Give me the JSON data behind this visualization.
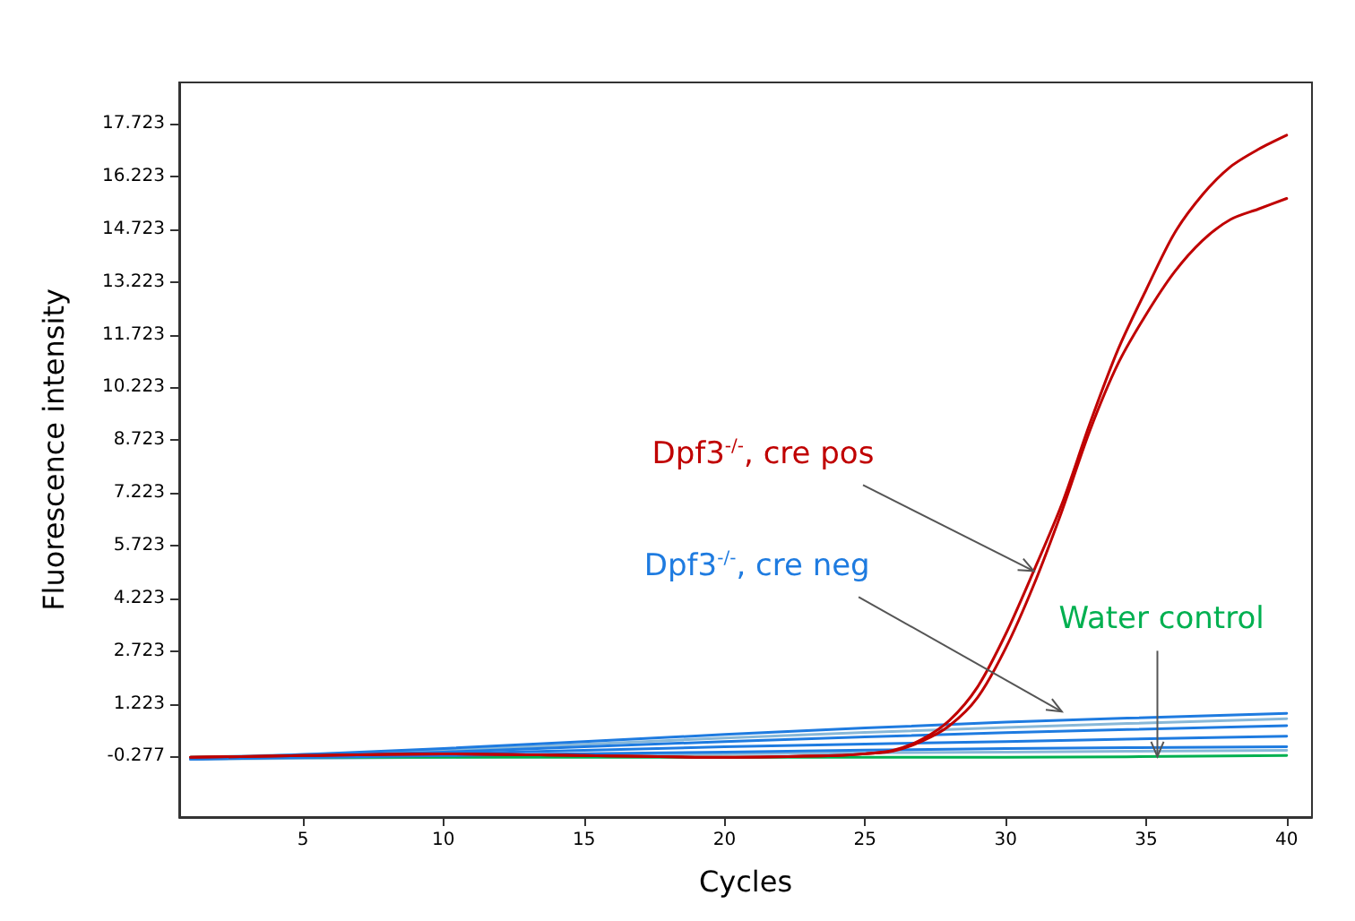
{
  "chart_data": {
    "type": "line",
    "xlabel": "Cycles",
    "ylabel": "Fluorescence intensity",
    "xlim": [
      0.6,
      40.9
    ],
    "ylim": [
      -2.0,
      18.9
    ],
    "xticks": [
      5,
      10,
      15,
      20,
      25,
      30,
      35,
      40
    ],
    "yticks": [
      -0.277,
      1.223,
      2.723,
      4.223,
      5.723,
      7.223,
      8.723,
      10.223,
      11.723,
      13.223,
      14.723,
      16.223,
      17.723
    ],
    "grid": false,
    "marker": "none",
    "line_style": "solid",
    "series": [
      {
        "color": "#c00000",
        "x": [
          1,
          5,
          10,
          15,
          20,
          24,
          25,
          26,
          27,
          28,
          29,
          30,
          31,
          32,
          33,
          34,
          35,
          36,
          37,
          38,
          39,
          40
        ],
        "values": [
          -0.3,
          -0.25,
          -0.2,
          -0.25,
          -0.3,
          -0.25,
          -0.2,
          -0.1,
          0.2,
          0.75,
          1.7,
          3.2,
          5.0,
          6.9,
          9.2,
          11.3,
          13.0,
          14.6,
          15.7,
          16.5,
          17.0,
          17.4
        ]
      },
      {
        "color": "#c00000",
        "x": [
          1,
          5,
          10,
          15,
          20,
          24,
          25,
          26,
          27,
          28,
          29,
          30,
          31,
          32,
          33,
          34,
          35,
          36,
          37,
          38,
          39,
          40
        ],
        "values": [
          -0.3,
          -0.25,
          -0.2,
          -0.25,
          -0.3,
          -0.25,
          -0.2,
          -0.12,
          0.15,
          0.6,
          1.4,
          2.8,
          4.6,
          6.7,
          9.0,
          10.9,
          12.3,
          13.5,
          14.4,
          15.0,
          15.3,
          15.6
        ]
      },
      {
        "color": "#1e7be0",
        "x": [
          1,
          10,
          20,
          30,
          40
        ],
        "values": [
          -0.35,
          -0.05,
          0.35,
          0.7,
          0.95
        ]
      },
      {
        "color": "#1e7be0",
        "x": [
          1,
          10,
          20,
          30,
          40
        ],
        "values": [
          -0.35,
          -0.15,
          0.15,
          0.4,
          0.6
        ]
      },
      {
        "color": "#1e7be0",
        "x": [
          1,
          10,
          20,
          30,
          40
        ],
        "values": [
          -0.35,
          -0.2,
          0.0,
          0.15,
          0.3
        ]
      },
      {
        "color": "#1e7be0",
        "x": [
          1,
          10,
          20,
          30,
          40
        ],
        "values": [
          -0.35,
          -0.25,
          -0.15,
          -0.05,
          0.0
        ]
      },
      {
        "color": "#00b050",
        "x": [
          1,
          10,
          20,
          30,
          40
        ],
        "values": [
          -0.3,
          -0.3,
          -0.3,
          -0.3,
          -0.25
        ]
      },
      {
        "color": "#88b8d8",
        "x": [
          1,
          10,
          20,
          30,
          40
        ],
        "values": [
          -0.3,
          -0.1,
          0.25,
          0.55,
          0.8
        ]
      },
      {
        "color": "#88b8d8",
        "x": [
          1,
          10,
          20,
          30,
          40
        ],
        "values": [
          -0.35,
          -0.3,
          -0.2,
          -0.15,
          -0.1
        ]
      }
    ],
    "annotations": [
      {
        "text": "Dpf3$^{-/-}$, cre pos",
        "x": 31,
        "y": 5
      },
      {
        "text": "Dpf3$^{-/-}$, cre neg",
        "x": 32,
        "y": 1
      },
      {
        "text": "Water control",
        "x": 35.4,
        "y": -0.277
      }
    ]
  }
}
